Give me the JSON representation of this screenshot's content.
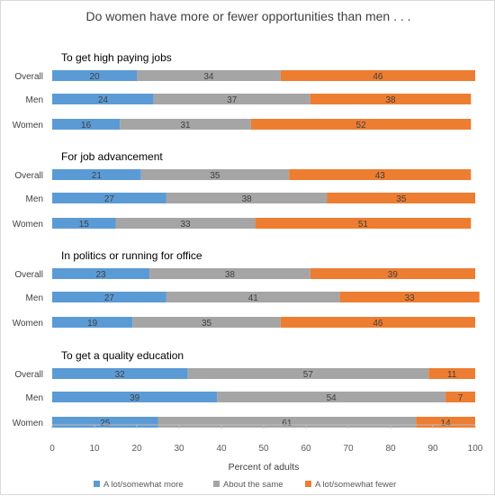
{
  "chart_data": {
    "type": "bar",
    "orientation": "horizontal",
    "stacked": true,
    "title": "Do women have more or fewer opportunities than men . . .",
    "xlabel": "Percent of adults",
    "xlim": [
      0,
      100
    ],
    "xticks": [
      0,
      10,
      20,
      30,
      40,
      50,
      60,
      70,
      80,
      90,
      100
    ],
    "grid": false,
    "legend_position": "bottom",
    "legend": [
      {
        "label": "A lot/somewhat more",
        "color": "#5b9bd5"
      },
      {
        "label": "About the same",
        "color": "#a5a5a5"
      },
      {
        "label": "A lot/somewhat fewer",
        "color": "#ed7d31"
      }
    ],
    "groups": [
      {
        "heading": "To get high paying jobs",
        "rows": [
          {
            "label": "Overall",
            "values": [
              20,
              34,
              46
            ]
          },
          {
            "label": "Men",
            "values": [
              24,
              37,
              38
            ]
          },
          {
            "label": "Women",
            "values": [
              16,
              31,
              52
            ]
          }
        ]
      },
      {
        "heading": "For job advancement",
        "rows": [
          {
            "label": "Overall",
            "values": [
              21,
              35,
              43
            ]
          },
          {
            "label": "Men",
            "values": [
              27,
              38,
              35
            ]
          },
          {
            "label": "Women",
            "values": [
              15,
              33,
              51
            ]
          }
        ]
      },
      {
        "heading": "In politics or running for office",
        "rows": [
          {
            "label": "Overall",
            "values": [
              23,
              38,
              39
            ]
          },
          {
            "label": "Men",
            "values": [
              27,
              41,
              33
            ]
          },
          {
            "label": "Women",
            "values": [
              19,
              35,
              46
            ]
          }
        ]
      },
      {
        "heading": "To get a quality education",
        "rows": [
          {
            "label": "Overall",
            "values": [
              32,
              57,
              11
            ]
          },
          {
            "label": "Men",
            "values": [
              39,
              54,
              7
            ]
          },
          {
            "label": "Women",
            "values": [
              25,
              61,
              14
            ]
          }
        ]
      }
    ]
  }
}
